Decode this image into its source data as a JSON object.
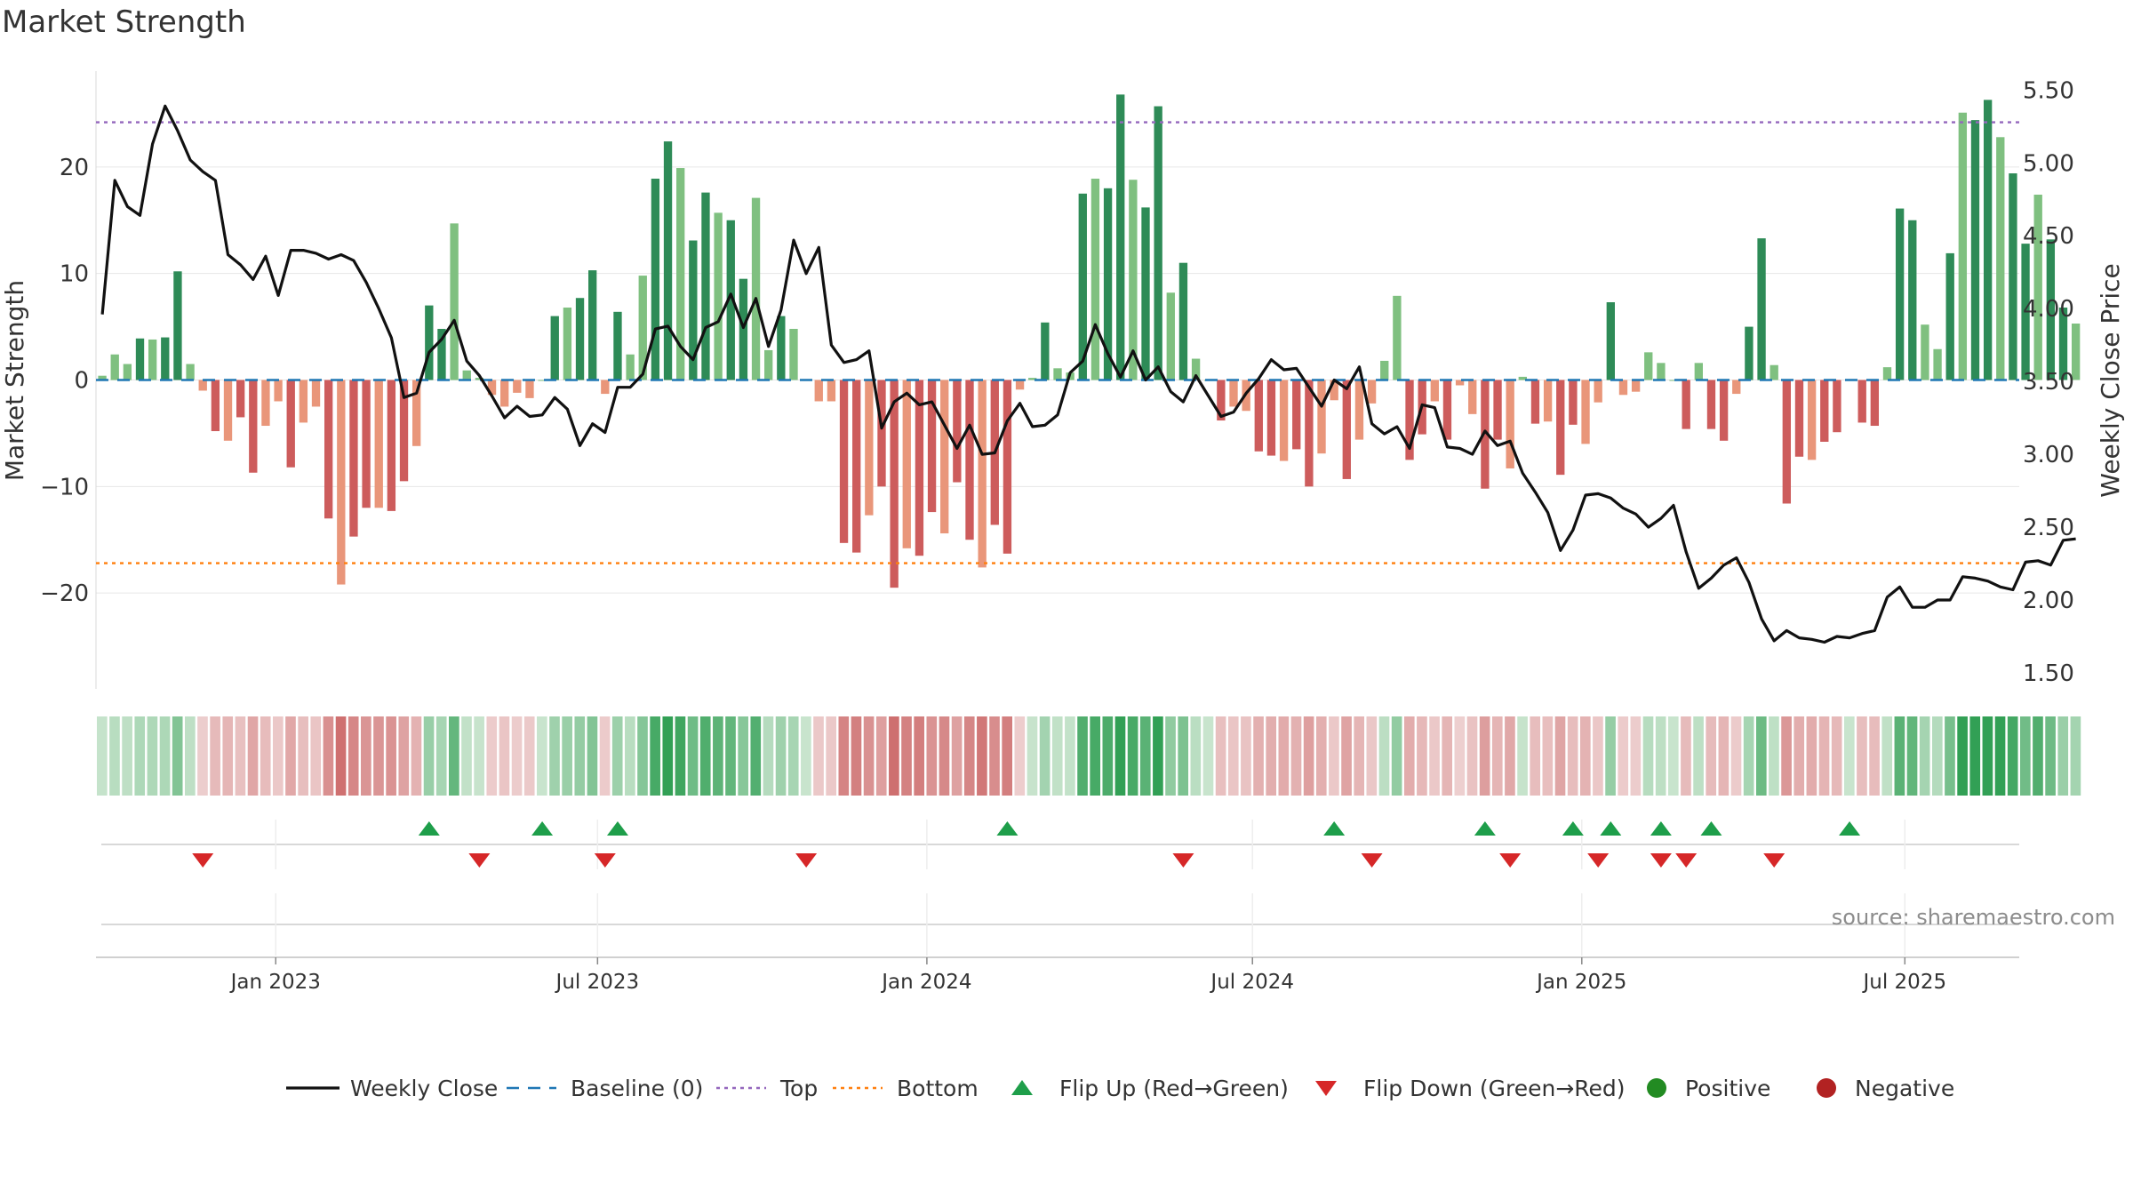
{
  "chart_data": {
    "type": "bar",
    "title": "Market Strength",
    "ylabel_left": "Market Strength",
    "ylabel_right": "Weekly Close Price",
    "source": "source: sharemaestro.com",
    "ylim_left": [
      -29,
      29
    ],
    "ylim_right": [
      1.39,
      5.63
    ],
    "xlim_weeks": [
      0,
      153
    ],
    "y_ticks_left": [
      -20,
      -10,
      0,
      10,
      20
    ],
    "y_tick_labels_left": [
      "−20",
      "−10",
      "0",
      "10",
      "20"
    ],
    "y_ticks_right": [
      1.5,
      2.0,
      2.5,
      3.0,
      3.5,
      4.0,
      4.5,
      5.0,
      5.5
    ],
    "y_tick_labels_right": [
      "1.50",
      "2.00",
      "2.50",
      "3.00",
      "3.50",
      "4.00",
      "4.50",
      "5.00",
      "5.50"
    ],
    "x_ticks": [
      {
        "label": "Jan 2023",
        "week": 14.3
      },
      {
        "label": "Jul 2023",
        "week": 39.9
      },
      {
        "label": "Jan 2024",
        "week": 66.1
      },
      {
        "label": "Jul 2024",
        "week": 92.0
      },
      {
        "label": "Jan 2025",
        "week": 118.2
      },
      {
        "label": "Jul 2025",
        "week": 143.9
      }
    ],
    "top_level": 24.2,
    "bottom_level": -17.2,
    "strength": [
      0.4,
      2.4,
      1.5,
      3.9,
      3.8,
      4,
      10.2,
      1.5,
      -1,
      -4.8,
      -5.7,
      -3.5,
      -8.7,
      -4.3,
      -2,
      -8.2,
      -4,
      -2.5,
      -13,
      -19.2,
      -14.7,
      -12,
      -12,
      -12.3,
      -9.5,
      -6.2,
      7,
      4.8,
      14.7,
      0.9,
      0.2,
      -1.4,
      -2.5,
      -1.2,
      -1.7,
      0,
      6,
      6.8,
      7.7,
      10.3,
      -1.3,
      6.4,
      2.4,
      9.8,
      18.9,
      22.4,
      19.9,
      13.1,
      17.6,
      15.7,
      15,
      9.5,
      17.1,
      2.8,
      6,
      4.8,
      0,
      -2,
      -2,
      -15.3,
      -16.2,
      -12.7,
      -10,
      -19.5,
      -15.8,
      -16.5,
      -12.4,
      -14.4,
      -9.6,
      -15,
      -17.6,
      -13.6,
      -16.3,
      -0.9,
      0.2,
      5.4,
      1.1,
      0.7,
      17.5,
      18.9,
      18,
      26.8,
      18.8,
      16.2,
      25.7,
      8.2,
      11,
      2,
      0,
      -3.8,
      -2.5,
      -2.9,
      -6.7,
      -7.1,
      -7.6,
      -6.5,
      -10,
      -6.9,
      -1.9,
      -9.3,
      -5.6,
      -2.2,
      1.8,
      7.9,
      -7.5,
      -5.1,
      -2,
      -5.6,
      -0.5,
      -3.2,
      -10.2,
      -5.6,
      -8.3,
      0.3,
      -4.1,
      -3.9,
      -8.9,
      -4.2,
      -6,
      -2.1,
      7.3,
      -1.4,
      -1.1,
      2.6,
      1.6,
      0,
      -4.6,
      1.6,
      -4.6,
      -5.7,
      -1.3,
      5,
      13.3,
      1.4,
      -11.6,
      -7.2,
      -7.5,
      -5.8,
      -4.9,
      0,
      -4,
      -4.3,
      1.2,
      16.1,
      15,
      5.2,
      2.9,
      11.9,
      25.1,
      24.4,
      26.3,
      22.8,
      19.4,
      12.8,
      17.4,
      13.2,
      6.8,
      5.3
    ],
    "close": [
      3.96,
      4.88,
      4.7,
      4.64,
      5.13,
      5.39,
      5.22,
      5.02,
      4.94,
      4.88,
      4.37,
      4.3,
      4.2,
      4.36,
      4.09,
      4.4,
      4.4,
      4.38,
      4.34,
      4.37,
      4.33,
      4.18,
      4.0,
      3.8,
      3.39,
      3.42,
      3.7,
      3.79,
      3.92,
      3.64,
      3.54,
      3.4,
      3.25,
      3.33,
      3.26,
      3.27,
      3.39,
      3.31,
      3.06,
      3.21,
      3.15,
      3.46,
      3.46,
      3.55,
      3.86,
      3.88,
      3.74,
      3.65,
      3.87,
      3.91,
      4.1,
      3.87,
      4.07,
      3.74,
      3.99,
      4.47,
      4.24,
      4.42,
      3.75,
      3.63,
      3.65,
      3.71,
      3.18,
      3.36,
      3.42,
      3.34,
      3.36,
      3.2,
      3.04,
      3.2,
      3.0,
      3.01,
      3.23,
      3.35,
      3.19,
      3.2,
      3.27,
      3.56,
      3.64,
      3.89,
      3.69,
      3.53,
      3.71,
      3.51,
      3.6,
      3.43,
      3.36,
      3.54,
      3.4,
      3.26,
      3.29,
      3.42,
      3.52,
      3.65,
      3.58,
      3.59,
      3.46,
      3.33,
      3.51,
      3.45,
      3.6,
      3.21,
      3.14,
      3.19,
      3.04,
      3.34,
      3.32,
      3.05,
      3.04,
      3.0,
      3.16,
      3.06,
      3.09,
      2.87,
      2.74,
      2.6,
      2.34,
      2.48,
      2.72,
      2.73,
      2.7,
      2.63,
      2.59,
      2.5,
      2.56,
      2.65,
      2.33,
      2.08,
      2.15,
      2.24,
      2.29,
      2.12,
      1.87,
      1.72,
      1.79,
      1.74,
      1.73,
      1.71,
      1.75,
      1.74,
      1.77,
      1.79,
      2.02,
      2.09,
      1.95,
      1.95,
      2.0,
      2.0,
      2.16,
      2.15,
      2.13,
      2.09,
      2.07,
      2.26,
      2.27,
      2.24,
      2.41,
      2.42
    ],
    "bar_colors": {
      "strong_positive": "#2e8b57",
      "weak_positive": "#7fc080",
      "strong_negative": "#cd5c5c",
      "weak_negative": "#e9967a"
    },
    "line_colors": {
      "close": "#111111",
      "baseline": "#1f77b4",
      "top": "#9467bd",
      "bottom": "#ff7f0e"
    },
    "flip_up_weeks": [
      26,
      35,
      41,
      72,
      98,
      110,
      117,
      120,
      124,
      128,
      139
    ],
    "flip_down_weeks": [
      8,
      30,
      40,
      56,
      86,
      101,
      112,
      119,
      124,
      126,
      133
    ],
    "flip_colors": {
      "up": "#1e9e4a",
      "down": "#d62728"
    },
    "legend": [
      {
        "label": "Weekly Close",
        "kind": "line",
        "color": "#111111"
      },
      {
        "label": "Baseline (0)",
        "kind": "dash",
        "color": "#1f77b4"
      },
      {
        "label": "Top",
        "kind": "dot",
        "color": "#9467bd"
      },
      {
        "label": "Bottom",
        "kind": "dot",
        "color": "#ff7f0e"
      },
      {
        "label": "Flip Up (Red→Green)",
        "kind": "tri-up",
        "color": "#1e9e4a"
      },
      {
        "label": "Flip Down (Green→Red)",
        "kind": "tri-down",
        "color": "#d62728"
      },
      {
        "label": "Positive",
        "kind": "circle",
        "color": "#228b22"
      },
      {
        "label": "Negative",
        "kind": "circle",
        "color": "#b22222"
      }
    ]
  }
}
